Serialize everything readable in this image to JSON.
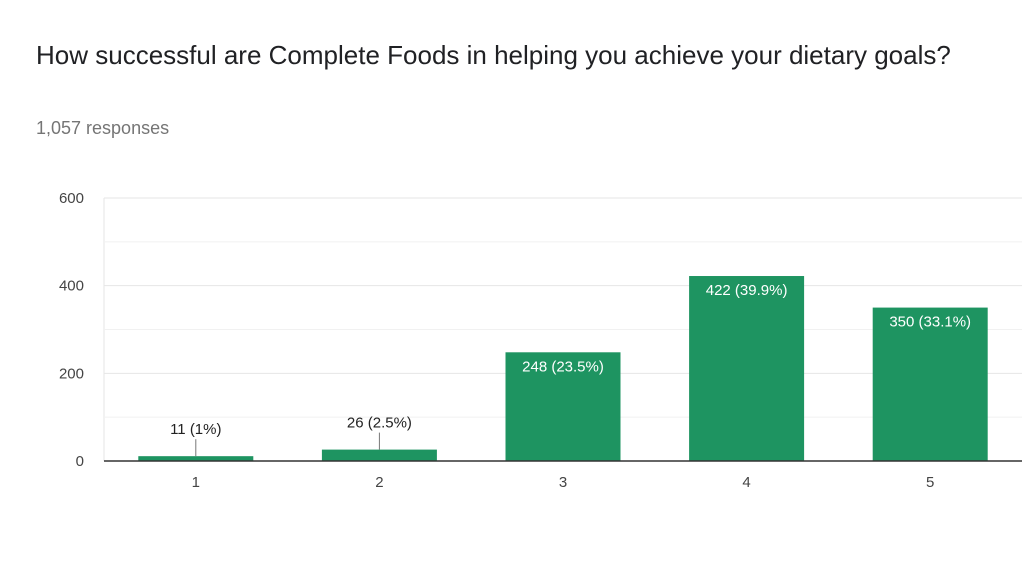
{
  "question": {
    "title": "How successful are Complete Foods in helping you achieve your dietary goals?",
    "responses": "1,057 responses"
  },
  "colors": {
    "bar": "#1e9461",
    "grid": "#e6e6e6",
    "axis": "#333333",
    "label_inside": "#ffffff",
    "label_outside": "#222222"
  },
  "chart_data": {
    "type": "bar",
    "categories": [
      "1",
      "2",
      "3",
      "4",
      "5"
    ],
    "values": [
      11,
      26,
      248,
      422,
      350
    ],
    "data_labels": [
      "11 (1%)",
      "26 (2.5%)",
      "248 (23.5%)",
      "422 (39.9%)",
      "350 (33.1%)"
    ],
    "title": "How successful are Complete Foods in helping you achieve your dietary goals?",
    "xlabel": "",
    "ylabel": "",
    "ylim": [
      0,
      600
    ],
    "yticks": [
      0,
      200,
      400,
      600
    ],
    "grid": true
  }
}
